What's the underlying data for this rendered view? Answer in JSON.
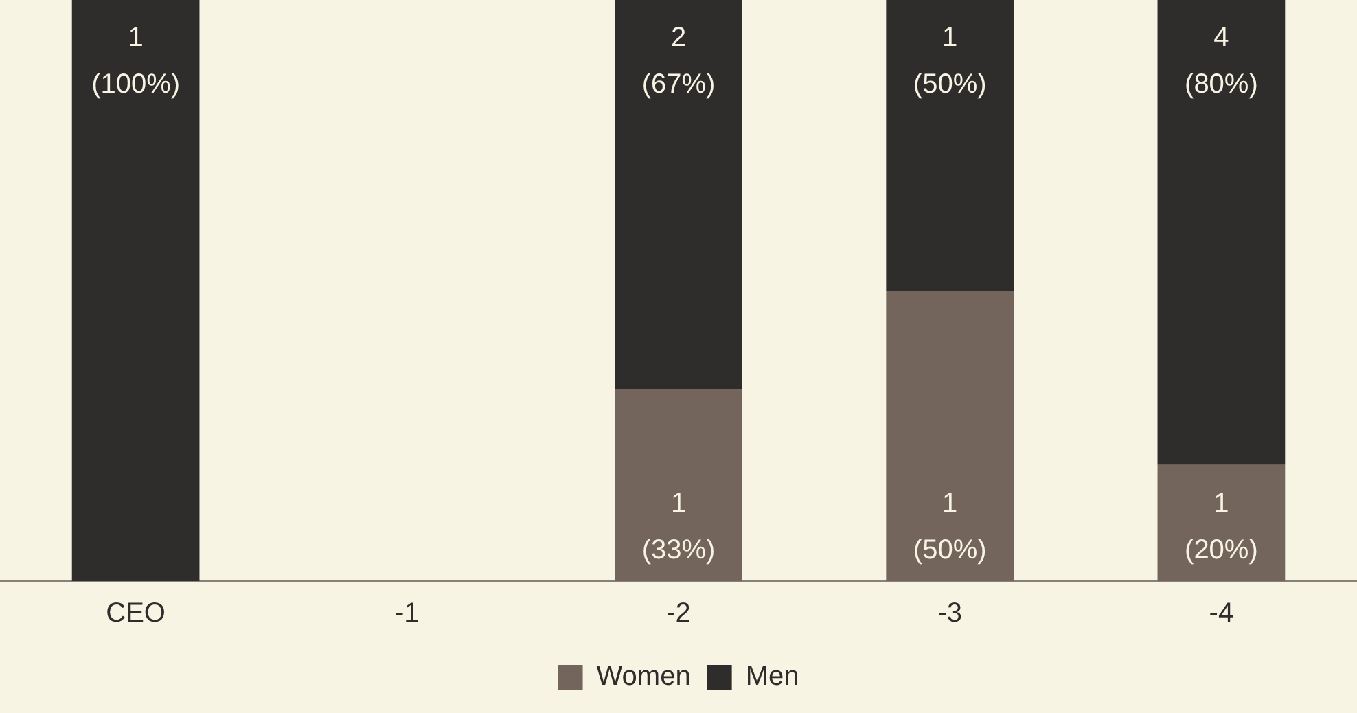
{
  "chart_data": {
    "type": "bar",
    "stacked": true,
    "categories": [
      "CEO",
      "-1",
      "-2",
      "-3",
      "-4"
    ],
    "series": [
      {
        "name": "Women",
        "color": "#73655c",
        "values": [
          null,
          null,
          33,
          50,
          20
        ],
        "value_labels": [
          null,
          null,
          "1\n(33%)",
          "1\n(50%)",
          "1\n(20%)"
        ]
      },
      {
        "name": "Men",
        "color": "#2f2d2c",
        "values": [
          100,
          null,
          67,
          50,
          80
        ],
        "value_labels": [
          "1\n(100%)",
          null,
          "2\n(67%)",
          "1\n(50%)",
          "4\n(80%)"
        ]
      }
    ],
    "ylim": [
      0,
      100
    ],
    "tick_labels": "x",
    "grid": false,
    "legend": "bottom"
  }
}
